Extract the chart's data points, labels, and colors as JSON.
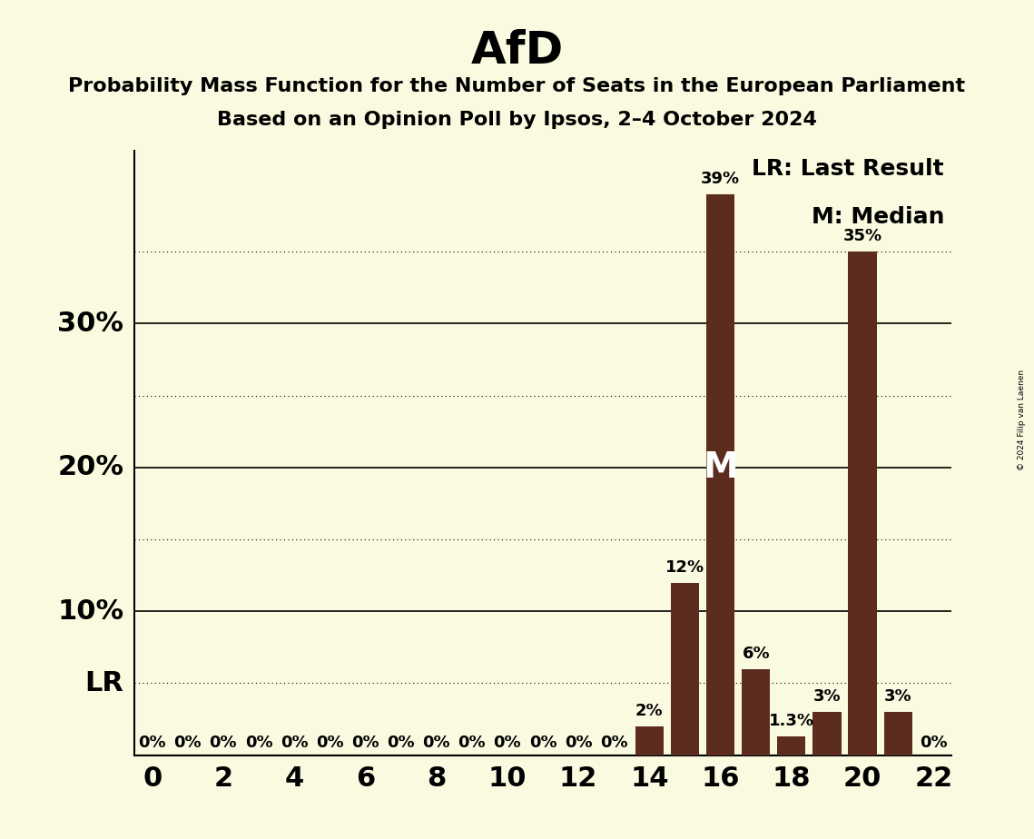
{
  "title": "AfD",
  "subtitle1": "Probability Mass Function for the Number of Seats in the European Parliament",
  "subtitle2": "Based on an Opinion Poll by Ipsos, 2–4 October 2024",
  "copyright": "© 2024 Filip van Laenen",
  "bar_color": "#5C2D1E",
  "background_color": "#FAFAE0",
  "seats": [
    0,
    1,
    2,
    3,
    4,
    5,
    6,
    7,
    8,
    9,
    10,
    11,
    12,
    13,
    14,
    15,
    16,
    17,
    18,
    19,
    20,
    21,
    22
  ],
  "probabilities": [
    0,
    0,
    0,
    0,
    0,
    0,
    0,
    0,
    0,
    0,
    0,
    0,
    0,
    0,
    2,
    12,
    39,
    6,
    1.3,
    3,
    35,
    3,
    0
  ],
  "bar_labels": [
    "0%",
    "0%",
    "0%",
    "0%",
    "0%",
    "0%",
    "0%",
    "0%",
    "0%",
    "0%",
    "0%",
    "0%",
    "0%",
    "0%",
    "2%",
    "12%",
    "39%",
    "6%",
    "1.3%",
    "3%",
    "35%",
    "3%",
    "0%"
  ],
  "last_result_seat": 16,
  "median_seat": 16,
  "lr_label": "LR",
  "median_label": "M",
  "legend_lr": "LR: Last Result",
  "legend_m": "M: Median",
  "ylim": [
    0,
    42
  ],
  "xlim": [
    -0.5,
    22.5
  ],
  "ytick_solid": [
    10,
    20,
    30
  ],
  "ytick_solid_labels": [
    "10%",
    "20%",
    "30%"
  ],
  "ytick_dotted": [
    5,
    15,
    25,
    35
  ],
  "lr_line_y": 5,
  "xticks": [
    0,
    2,
    4,
    6,
    8,
    10,
    12,
    14,
    16,
    18,
    20,
    22
  ],
  "title_fontsize": 36,
  "subtitle_fontsize": 16,
  "axis_label_fontsize": 22,
  "bar_label_fontsize": 13,
  "legend_fontsize": 18,
  "median_label_fontsize": 28,
  "lr_label_fontsize": 22
}
